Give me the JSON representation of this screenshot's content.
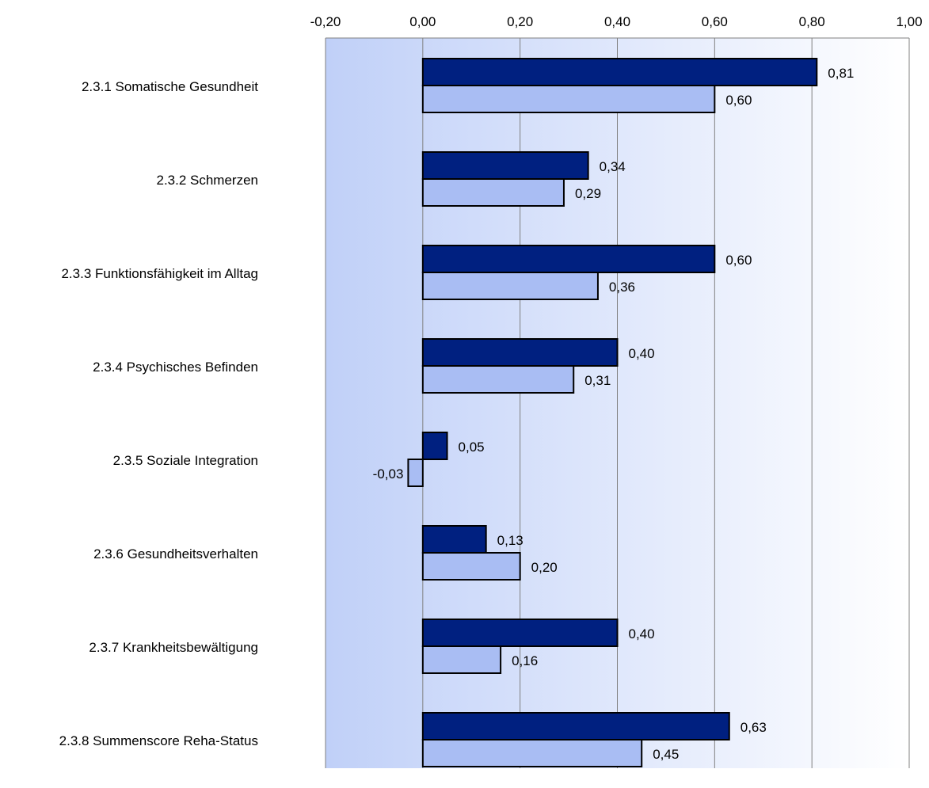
{
  "chart_data": {
    "type": "bar",
    "orientation": "horizontal",
    "categories": [
      "2.3.1 Somatische Gesundheit",
      "2.3.2 Schmerzen",
      "2.3.3 Funktionsfähigkeit im Alltag",
      "2.3.4 Psychisches Befinden",
      "2.3.5 Soziale Integration",
      "2.3.6 Gesundheitsverhalten",
      "2.3.7 Krankheitsbewältigung",
      "2.3.8 Summenscore Reha-Status"
    ],
    "series": [
      {
        "values": [
          0.81,
          0.34,
          0.6,
          0.4,
          0.05,
          0.13,
          0.4,
          0.63
        ],
        "labels": [
          "0,81",
          "0,34",
          "0,60",
          "0,40",
          "0,05",
          "0,13",
          "0,40",
          "0,63"
        ],
        "color": "#002080"
      },
      {
        "values": [
          0.6,
          0.29,
          0.36,
          0.31,
          -0.03,
          0.2,
          0.16,
          0.45
        ],
        "labels": [
          "0,60",
          "0,29",
          "0,36",
          "0,31",
          "-0,03",
          "0,20",
          "0,16",
          "0,45"
        ],
        "color": "#a9bdf3"
      }
    ],
    "xlim": [
      -0.2,
      1.0
    ],
    "ticks": [
      -0.2,
      0,
      0.2,
      0.4,
      0.6,
      0.8,
      1.0
    ],
    "tick_labels": [
      "-0,20",
      "0,00",
      "0,20",
      "0,40",
      "0,60",
      "0,80",
      "1,00"
    ],
    "axis_position": "top",
    "grid": true,
    "background_gradient": [
      "#c0d0f8",
      "#ffffff"
    ]
  }
}
